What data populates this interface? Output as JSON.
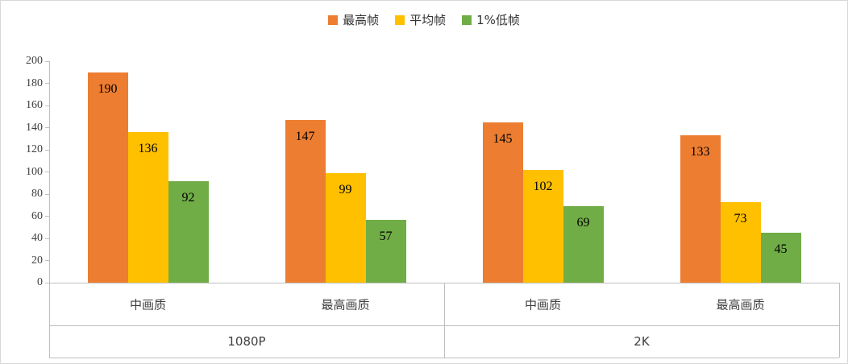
{
  "chart_data": {
    "type": "bar",
    "title": "",
    "legend_position": "top",
    "grid": false,
    "ylim": [
      0,
      200
    ],
    "ytick_step": 20,
    "groups": [
      {
        "label": "1080P",
        "categories": [
          "中画质",
          "最高画质"
        ]
      },
      {
        "label": "2K",
        "categories": [
          "中画质",
          "最高画质"
        ]
      }
    ],
    "series": [
      {
        "name": "最高帧",
        "color": "#ED7D31",
        "values": [
          190,
          147,
          145,
          133
        ]
      },
      {
        "name": "平均帧",
        "color": "#FFC000",
        "values": [
          136,
          99,
          102,
          73
        ]
      },
      {
        "name": "1%低帧",
        "color": "#70AD47",
        "values": [
          92,
          57,
          69,
          45
        ]
      }
    ],
    "colors": {
      "axis_line": "#BFBFBF",
      "tick_text": "#404040",
      "data_label": "#000000",
      "category_text": "#404040"
    }
  }
}
